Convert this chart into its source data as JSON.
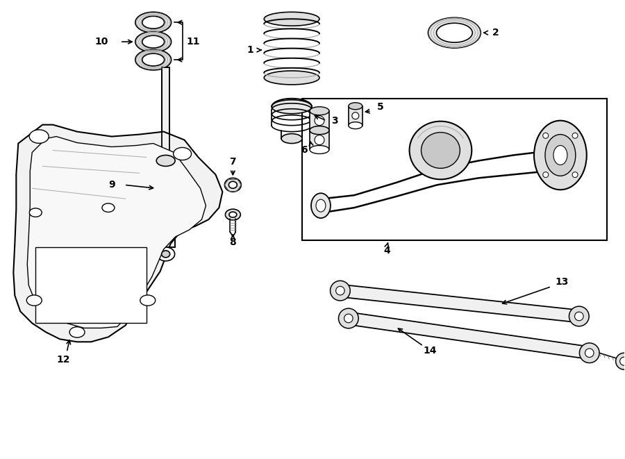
{
  "bg_color": "#ffffff",
  "line_color": "#000000",
  "parts": [
    {
      "id": 1,
      "label": "1"
    },
    {
      "id": 2,
      "label": "2"
    },
    {
      "id": 3,
      "label": "3"
    },
    {
      "id": 4,
      "label": "4"
    },
    {
      "id": 5,
      "label": "5"
    },
    {
      "id": 6,
      "label": "6"
    },
    {
      "id": 7,
      "label": "7"
    },
    {
      "id": 8,
      "label": "8"
    },
    {
      "id": 9,
      "label": "9"
    },
    {
      "id": 10,
      "label": "10"
    },
    {
      "id": 11,
      "label": "11"
    },
    {
      "id": 12,
      "label": "12"
    },
    {
      "id": 13,
      "label": "13"
    },
    {
      "id": 14,
      "label": "14"
    }
  ]
}
